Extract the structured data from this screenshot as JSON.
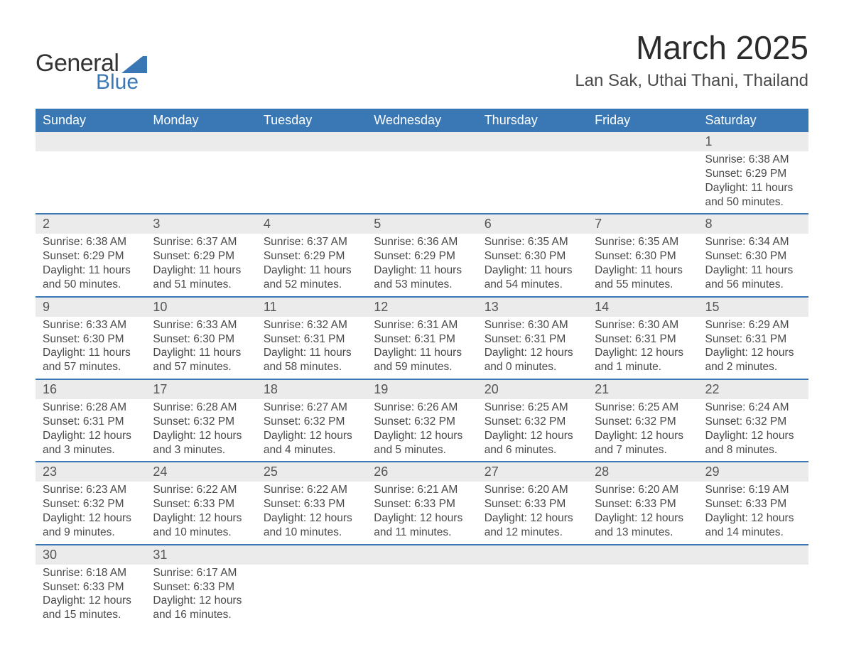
{
  "logo": {
    "text1": "General",
    "text2": "Blue",
    "brand_color": "#3a78b5"
  },
  "title": "March 2025",
  "location": "Lan Sak, Uthai Thani, Thailand",
  "header_bg": "#3a78b5",
  "daynum_bg": "#ebebeb",
  "border_color": "#3a78b5",
  "text_color": "#4a4a4a",
  "weekdays": [
    "Sunday",
    "Monday",
    "Tuesday",
    "Wednesday",
    "Thursday",
    "Friday",
    "Saturday"
  ],
  "weeks": [
    [
      null,
      null,
      null,
      null,
      null,
      null,
      {
        "d": "1",
        "sr": "Sunrise: 6:38 AM",
        "ss": "Sunset: 6:29 PM",
        "dl1": "Daylight: 11 hours",
        "dl2": "and 50 minutes."
      }
    ],
    [
      {
        "d": "2",
        "sr": "Sunrise: 6:38 AM",
        "ss": "Sunset: 6:29 PM",
        "dl1": "Daylight: 11 hours",
        "dl2": "and 50 minutes."
      },
      {
        "d": "3",
        "sr": "Sunrise: 6:37 AM",
        "ss": "Sunset: 6:29 PM",
        "dl1": "Daylight: 11 hours",
        "dl2": "and 51 minutes."
      },
      {
        "d": "4",
        "sr": "Sunrise: 6:37 AM",
        "ss": "Sunset: 6:29 PM",
        "dl1": "Daylight: 11 hours",
        "dl2": "and 52 minutes."
      },
      {
        "d": "5",
        "sr": "Sunrise: 6:36 AM",
        "ss": "Sunset: 6:29 PM",
        "dl1": "Daylight: 11 hours",
        "dl2": "and 53 minutes."
      },
      {
        "d": "6",
        "sr": "Sunrise: 6:35 AM",
        "ss": "Sunset: 6:30 PM",
        "dl1": "Daylight: 11 hours",
        "dl2": "and 54 minutes."
      },
      {
        "d": "7",
        "sr": "Sunrise: 6:35 AM",
        "ss": "Sunset: 6:30 PM",
        "dl1": "Daylight: 11 hours",
        "dl2": "and 55 minutes."
      },
      {
        "d": "8",
        "sr": "Sunrise: 6:34 AM",
        "ss": "Sunset: 6:30 PM",
        "dl1": "Daylight: 11 hours",
        "dl2": "and 56 minutes."
      }
    ],
    [
      {
        "d": "9",
        "sr": "Sunrise: 6:33 AM",
        "ss": "Sunset: 6:30 PM",
        "dl1": "Daylight: 11 hours",
        "dl2": "and 57 minutes."
      },
      {
        "d": "10",
        "sr": "Sunrise: 6:33 AM",
        "ss": "Sunset: 6:30 PM",
        "dl1": "Daylight: 11 hours",
        "dl2": "and 57 minutes."
      },
      {
        "d": "11",
        "sr": "Sunrise: 6:32 AM",
        "ss": "Sunset: 6:31 PM",
        "dl1": "Daylight: 11 hours",
        "dl2": "and 58 minutes."
      },
      {
        "d": "12",
        "sr": "Sunrise: 6:31 AM",
        "ss": "Sunset: 6:31 PM",
        "dl1": "Daylight: 11 hours",
        "dl2": "and 59 minutes."
      },
      {
        "d": "13",
        "sr": "Sunrise: 6:30 AM",
        "ss": "Sunset: 6:31 PM",
        "dl1": "Daylight: 12 hours",
        "dl2": "and 0 minutes."
      },
      {
        "d": "14",
        "sr": "Sunrise: 6:30 AM",
        "ss": "Sunset: 6:31 PM",
        "dl1": "Daylight: 12 hours",
        "dl2": "and 1 minute."
      },
      {
        "d": "15",
        "sr": "Sunrise: 6:29 AM",
        "ss": "Sunset: 6:31 PM",
        "dl1": "Daylight: 12 hours",
        "dl2": "and 2 minutes."
      }
    ],
    [
      {
        "d": "16",
        "sr": "Sunrise: 6:28 AM",
        "ss": "Sunset: 6:31 PM",
        "dl1": "Daylight: 12 hours",
        "dl2": "and 3 minutes."
      },
      {
        "d": "17",
        "sr": "Sunrise: 6:28 AM",
        "ss": "Sunset: 6:32 PM",
        "dl1": "Daylight: 12 hours",
        "dl2": "and 3 minutes."
      },
      {
        "d": "18",
        "sr": "Sunrise: 6:27 AM",
        "ss": "Sunset: 6:32 PM",
        "dl1": "Daylight: 12 hours",
        "dl2": "and 4 minutes."
      },
      {
        "d": "19",
        "sr": "Sunrise: 6:26 AM",
        "ss": "Sunset: 6:32 PM",
        "dl1": "Daylight: 12 hours",
        "dl2": "and 5 minutes."
      },
      {
        "d": "20",
        "sr": "Sunrise: 6:25 AM",
        "ss": "Sunset: 6:32 PM",
        "dl1": "Daylight: 12 hours",
        "dl2": "and 6 minutes."
      },
      {
        "d": "21",
        "sr": "Sunrise: 6:25 AM",
        "ss": "Sunset: 6:32 PM",
        "dl1": "Daylight: 12 hours",
        "dl2": "and 7 minutes."
      },
      {
        "d": "22",
        "sr": "Sunrise: 6:24 AM",
        "ss": "Sunset: 6:32 PM",
        "dl1": "Daylight: 12 hours",
        "dl2": "and 8 minutes."
      }
    ],
    [
      {
        "d": "23",
        "sr": "Sunrise: 6:23 AM",
        "ss": "Sunset: 6:32 PM",
        "dl1": "Daylight: 12 hours",
        "dl2": "and 9 minutes."
      },
      {
        "d": "24",
        "sr": "Sunrise: 6:22 AM",
        "ss": "Sunset: 6:33 PM",
        "dl1": "Daylight: 12 hours",
        "dl2": "and 10 minutes."
      },
      {
        "d": "25",
        "sr": "Sunrise: 6:22 AM",
        "ss": "Sunset: 6:33 PM",
        "dl1": "Daylight: 12 hours",
        "dl2": "and 10 minutes."
      },
      {
        "d": "26",
        "sr": "Sunrise: 6:21 AM",
        "ss": "Sunset: 6:33 PM",
        "dl1": "Daylight: 12 hours",
        "dl2": "and 11 minutes."
      },
      {
        "d": "27",
        "sr": "Sunrise: 6:20 AM",
        "ss": "Sunset: 6:33 PM",
        "dl1": "Daylight: 12 hours",
        "dl2": "and 12 minutes."
      },
      {
        "d": "28",
        "sr": "Sunrise: 6:20 AM",
        "ss": "Sunset: 6:33 PM",
        "dl1": "Daylight: 12 hours",
        "dl2": "and 13 minutes."
      },
      {
        "d": "29",
        "sr": "Sunrise: 6:19 AM",
        "ss": "Sunset: 6:33 PM",
        "dl1": "Daylight: 12 hours",
        "dl2": "and 14 minutes."
      }
    ],
    [
      {
        "d": "30",
        "sr": "Sunrise: 6:18 AM",
        "ss": "Sunset: 6:33 PM",
        "dl1": "Daylight: 12 hours",
        "dl2": "and 15 minutes."
      },
      {
        "d": "31",
        "sr": "Sunrise: 6:17 AM",
        "ss": "Sunset: 6:33 PM",
        "dl1": "Daylight: 12 hours",
        "dl2": "and 16 minutes."
      },
      null,
      null,
      null,
      null,
      null
    ]
  ]
}
